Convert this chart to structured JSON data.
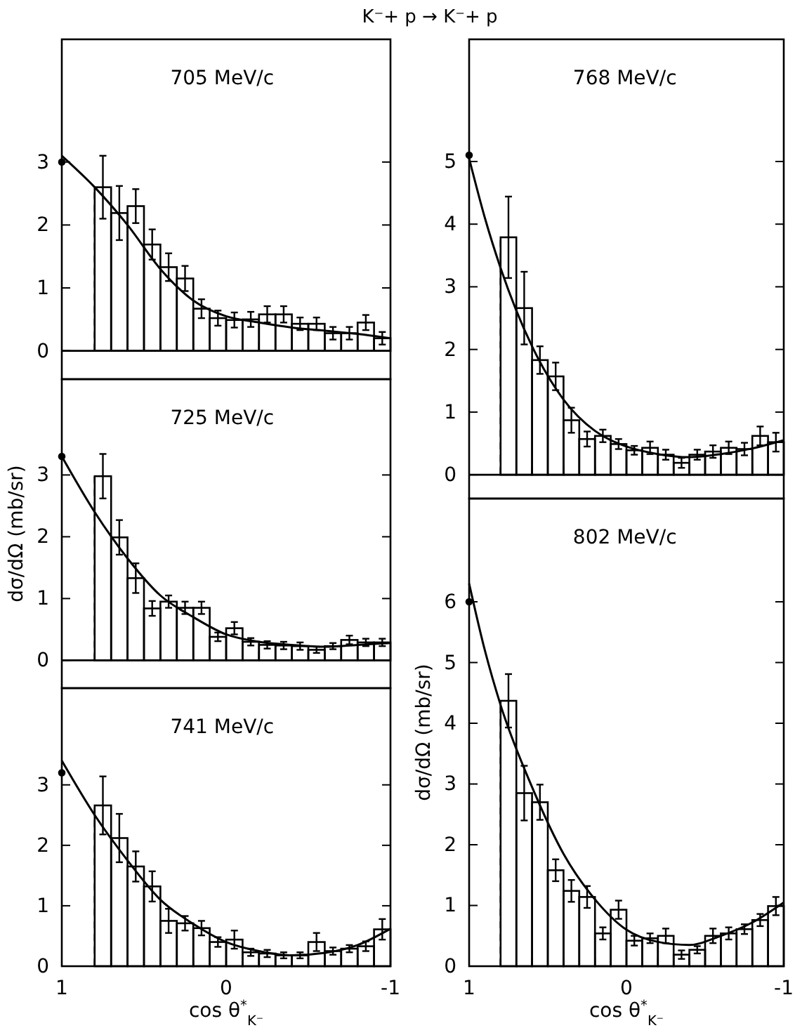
{
  "chart_data": [
    {
      "type": "histogram",
      "title": "705 MeV/c",
      "annotations": [
        "K⁻+ p → K⁻+ p"
      ],
      "bins": [
        0.8,
        0.7,
        0.6,
        0.5,
        0.4,
        0.3,
        0.2,
        0.1,
        0,
        -0.1,
        -0.2,
        -0.3,
        -0.4,
        -0.5,
        -0.6,
        -0.7,
        -0.8,
        -0.9,
        -1
      ],
      "xlim": [
        1,
        -1
      ],
      "ylim": [
        -0.45,
        4.95
      ],
      "xticks": [
        1,
        {
          "value": 0.8,
          "label": null
        },
        {
          "value": 0.6,
          "label": null
        },
        {
          "value": 0.4,
          "label": null
        },
        {
          "value": 0.2,
          "label": null
        },
        0,
        {
          "value": -0.2,
          "label": null
        },
        {
          "value": -0.4,
          "label": null
        },
        {
          "value": -0.6,
          "label": null
        },
        {
          "value": -0.8,
          "label": null
        },
        -1
      ],
      "yticks": [
        0,
        1,
        2,
        3
      ],
      "tick_labels": "y",
      "ref_lines": [
        {
          "axis": "x",
          "value": 0.8,
          "line_style": "dashed",
          "color": "#000000"
        },
        {
          "axis": "y",
          "value": 0,
          "line_style": "solid",
          "color": "#000000"
        }
      ],
      "series": [
        {
          "type": "histogram",
          "color": "#000000",
          "values": [
            2.6,
            2.19,
            2.3,
            1.69,
            1.33,
            1.15,
            0.67,
            0.52,
            0.49,
            0.5,
            0.58,
            0.58,
            0.43,
            0.43,
            0.28,
            0.28,
            0.45,
            0.2
          ],
          "errors": [
            0.5,
            0.43,
            0.27,
            0.24,
            0.22,
            0.2,
            0.15,
            0.12,
            0.12,
            0.12,
            0.13,
            0.13,
            0.1,
            0.1,
            0.1,
            0.1,
            0.12,
            0.1
          ]
        },
        {
          "type": "line",
          "color": "#000000",
          "x": [
            1,
            0.8,
            0.6,
            0.4,
            0.2,
            0,
            -0.2,
            -0.4,
            -0.6,
            -0.8,
            -1
          ],
          "values": [
            3.1,
            2.6,
            2.0,
            1.3,
            0.8,
            0.55,
            0.45,
            0.37,
            0.32,
            0.27,
            0.2
          ]
        },
        {
          "type": "scatter",
          "marker": "circle",
          "color": "#000000",
          "x": [
            1
          ],
          "values": [
            3.0
          ]
        }
      ]
    },
    {
      "type": "histogram",
      "title": "725 MeV/c",
      "ylabel": "dσ/dΩ (mb/sr)",
      "bins": [
        0.8,
        0.7,
        0.6,
        0.5,
        0.4,
        0.3,
        0.2,
        0.1,
        0,
        -0.1,
        -0.2,
        -0.3,
        -0.4,
        -0.5,
        -0.6,
        -0.7,
        -0.8,
        -0.9,
        -1
      ],
      "xlim": [
        1,
        -1
      ],
      "ylim": [
        -0.45,
        4.55
      ],
      "xticks": [
        1,
        {
          "value": 0.8,
          "label": null
        },
        {
          "value": 0.6,
          "label": null
        },
        {
          "value": 0.4,
          "label": null
        },
        {
          "value": 0.2,
          "label": null
        },
        0,
        {
          "value": -0.2,
          "label": null
        },
        {
          "value": -0.4,
          "label": null
        },
        {
          "value": -0.6,
          "label": null
        },
        {
          "value": -0.8,
          "label": null
        },
        -1
      ],
      "yticks": [
        0,
        1,
        2,
        3
      ],
      "tick_labels": "y",
      "ref_lines": [
        {
          "axis": "x",
          "value": 0.8,
          "line_style": "dashed",
          "color": "#000000"
        },
        {
          "axis": "y",
          "value": 0,
          "line_style": "solid",
          "color": "#000000"
        }
      ],
      "series": [
        {
          "type": "histogram",
          "color": "#000000",
          "values": [
            2.98,
            1.99,
            1.33,
            0.84,
            0.95,
            0.85,
            0.85,
            0.38,
            0.52,
            0.3,
            0.25,
            0.24,
            0.23,
            0.17,
            0.23,
            0.33,
            0.29,
            0.29
          ],
          "errors": [
            0.36,
            0.28,
            0.24,
            0.12,
            0.1,
            0.1,
            0.1,
            0.07,
            0.1,
            0.06,
            0.06,
            0.06,
            0.06,
            0.05,
            0.05,
            0.07,
            0.06,
            0.06
          ]
        },
        {
          "type": "line",
          "color": "#000000",
          "x": [
            1,
            0.8,
            0.6,
            0.4,
            0.2,
            0,
            -0.2,
            -0.4,
            -0.6,
            -0.8,
            -1
          ],
          "values": [
            3.3,
            2.4,
            1.65,
            1.05,
            0.7,
            0.42,
            0.3,
            0.25,
            0.22,
            0.25,
            0.28
          ]
        },
        {
          "type": "scatter",
          "marker": "circle",
          "color": "#000000",
          "x": [
            1
          ],
          "values": [
            3.3
          ]
        }
      ]
    },
    {
      "type": "histogram",
      "title": "741 MeV/c",
      "xlabel": "cos θ$^{*}$$_{K⁻}$",
      "bins": [
        0.8,
        0.7,
        0.6,
        0.5,
        0.4,
        0.3,
        0.2,
        0.1,
        0,
        -0.1,
        -0.2,
        -0.3,
        -0.4,
        -0.5,
        -0.6,
        -0.7,
        -0.8,
        -0.9,
        -1
      ],
      "xlim": [
        1,
        -1
      ],
      "ylim": [
        0,
        4.6
      ],
      "xticks": [
        1,
        {
          "value": 0.8,
          "label": null
        },
        {
          "value": 0.6,
          "label": null
        },
        {
          "value": 0.4,
          "label": null
        },
        {
          "value": 0.2,
          "label": null
        },
        0,
        {
          "value": -0.2,
          "label": null
        },
        {
          "value": -0.4,
          "label": null
        },
        {
          "value": -0.6,
          "label": null
        },
        {
          "value": -0.8,
          "label": null
        },
        -1
      ],
      "yticks": [
        0,
        1,
        2,
        3
      ],
      "ref_lines": [
        {
          "axis": "x",
          "value": 0.8,
          "line_style": "dashed",
          "color": "#000000"
        }
      ],
      "series": [
        {
          "type": "histogram",
          "color": "#000000",
          "values": [
            2.66,
            2.12,
            1.65,
            1.32,
            0.75,
            0.71,
            0.63,
            0.4,
            0.44,
            0.23,
            0.21,
            0.18,
            0.18,
            0.4,
            0.25,
            0.29,
            0.33,
            0.61
          ],
          "errors": [
            0.48,
            0.4,
            0.25,
            0.25,
            0.2,
            0.12,
            0.12,
            0.08,
            0.15,
            0.06,
            0.06,
            0.05,
            0.05,
            0.15,
            0.06,
            0.06,
            0.08,
            0.17
          ]
        },
        {
          "type": "line",
          "color": "#000000",
          "x": [
            1,
            0.8,
            0.6,
            0.4,
            0.2,
            0,
            -0.2,
            -0.4,
            -0.6,
            -0.8,
            -1
          ],
          "values": [
            3.4,
            2.5,
            1.75,
            1.1,
            0.7,
            0.4,
            0.25,
            0.18,
            0.22,
            0.35,
            0.62
          ]
        },
        {
          "type": "scatter",
          "marker": "circle",
          "color": "#000000",
          "x": [
            1
          ],
          "values": [
            3.2
          ]
        }
      ]
    },
    {
      "type": "histogram",
      "title": "768 MeV/c",
      "bins": [
        0.8,
        0.7,
        0.6,
        0.5,
        0.4,
        0.3,
        0.2,
        0.1,
        0,
        -0.1,
        -0.2,
        -0.3,
        -0.4,
        -0.5,
        -0.6,
        -0.7,
        -0.8,
        -0.9,
        -1
      ],
      "xlim": [
        1,
        -1
      ],
      "ylim": [
        -0.38,
        6.95
      ],
      "xticks": [
        1,
        {
          "value": 0.8,
          "label": null
        },
        {
          "value": 0.6,
          "label": null
        },
        {
          "value": 0.4,
          "label": null
        },
        {
          "value": 0.2,
          "label": null
        },
        0,
        {
          "value": -0.2,
          "label": null
        },
        {
          "value": -0.4,
          "label": null
        },
        {
          "value": -0.6,
          "label": null
        },
        {
          "value": -0.8,
          "label": null
        },
        -1
      ],
      "yticks": [
        0,
        1,
        2,
        3,
        4,
        5
      ],
      "tick_labels": "y",
      "ref_lines": [
        {
          "axis": "x",
          "value": 0.8,
          "line_style": "dashed",
          "color": "#000000"
        },
        {
          "axis": "y",
          "value": 0,
          "line_style": "solid",
          "color": "#000000"
        }
      ],
      "series": [
        {
          "type": "histogram",
          "color": "#000000",
          "values": [
            3.79,
            2.66,
            1.83,
            1.57,
            0.87,
            0.57,
            0.62,
            0.49,
            0.39,
            0.43,
            0.32,
            0.19,
            0.32,
            0.37,
            0.43,
            0.41,
            0.62,
            0.52
          ],
          "errors": [
            0.65,
            0.58,
            0.22,
            0.22,
            0.2,
            0.12,
            0.1,
            0.08,
            0.07,
            0.1,
            0.08,
            0.08,
            0.08,
            0.1,
            0.1,
            0.1,
            0.15,
            0.15
          ]
        },
        {
          "type": "line",
          "color": "#000000",
          "x": [
            1,
            0.9,
            0.8,
            0.6,
            0.4,
            0.2,
            0,
            -0.2,
            -0.4,
            -0.6,
            -0.8,
            -1
          ],
          "values": [
            5.05,
            4.1,
            3.3,
            2.05,
            1.2,
            0.7,
            0.45,
            0.33,
            0.28,
            0.33,
            0.42,
            0.55
          ]
        },
        {
          "type": "scatter",
          "marker": "circle",
          "color": "#000000",
          "x": [
            1
          ],
          "values": [
            5.1
          ]
        }
      ]
    },
    {
      "type": "histogram",
      "title": "802 MeV/c",
      "ylabel": "dσ/dΩ (mb/sr)",
      "xlabel": "cos θ$^{*}$$_{K⁻}$",
      "bins": [
        0.8,
        0.7,
        0.6,
        0.5,
        0.4,
        0.3,
        0.2,
        0.1,
        0,
        -0.1,
        -0.2,
        -0.3,
        -0.4,
        -0.5,
        -0.6,
        -0.7,
        -0.8,
        -0.9,
        -1
      ],
      "xlim": [
        1,
        -1
      ],
      "ylim": [
        0,
        7.7
      ],
      "xticks": [
        1,
        {
          "value": 0.8,
          "label": null
        },
        {
          "value": 0.6,
          "label": null
        },
        {
          "value": 0.4,
          "label": null
        },
        {
          "value": 0.2,
          "label": null
        },
        0,
        {
          "value": -0.2,
          "label": null
        },
        {
          "value": -0.4,
          "label": null
        },
        {
          "value": -0.6,
          "label": null
        },
        {
          "value": -0.8,
          "label": null
        },
        -1
      ],
      "yticks": [
        0,
        1,
        2,
        3,
        4,
        5,
        6
      ],
      "ref_lines": [
        {
          "axis": "x",
          "value": 0.8,
          "line_style": "dashed",
          "color": "#000000"
        }
      ],
      "series": [
        {
          "type": "histogram",
          "color": "#000000",
          "values": [
            4.37,
            2.85,
            2.7,
            1.58,
            1.24,
            1.14,
            0.54,
            0.93,
            0.42,
            0.46,
            0.5,
            0.19,
            0.27,
            0.5,
            0.54,
            0.61,
            0.76,
            0.99
          ],
          "errors": [
            0.44,
            0.45,
            0.29,
            0.18,
            0.18,
            0.18,
            0.1,
            0.15,
            0.08,
            0.08,
            0.12,
            0.07,
            0.06,
            0.12,
            0.1,
            0.08,
            0.1,
            0.15
          ]
        },
        {
          "type": "line",
          "color": "#000000",
          "x": [
            1,
            0.9,
            0.8,
            0.6,
            0.4,
            0.2,
            0,
            -0.2,
            -0.4,
            -0.6,
            -0.8,
            -1
          ],
          "values": [
            6.3,
            5.2,
            4.3,
            2.95,
            1.85,
            1.1,
            0.6,
            0.4,
            0.35,
            0.5,
            0.72,
            1.05
          ]
        },
        {
          "type": "scatter",
          "marker": "circle",
          "color": "#000000",
          "x": [
            1
          ],
          "values": [
            6.0
          ]
        }
      ]
    }
  ]
}
